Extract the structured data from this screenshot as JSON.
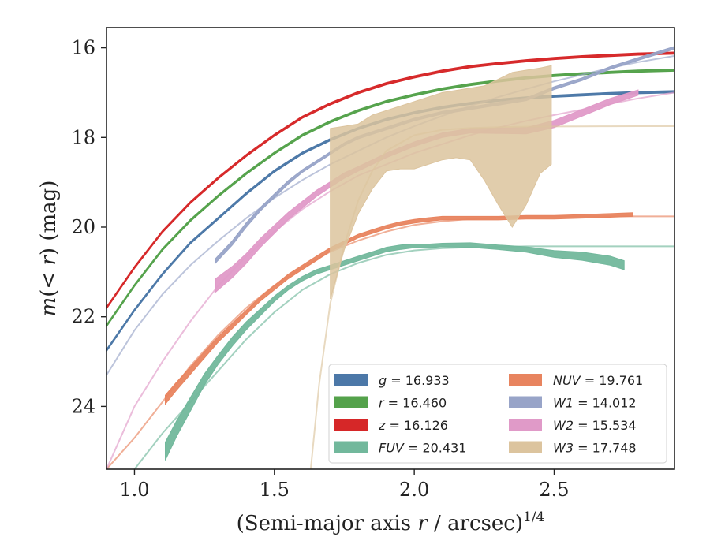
{
  "chart_data": {
    "type": "line",
    "title": "",
    "xlabel": "(Semi-major axis r / arcsec)^1/4",
    "xlabel_parts": {
      "prefix": "(Semi-major axis ",
      "var": "r",
      "suffix": " / arcsec)",
      "exponent": "1/4"
    },
    "ylabel": "m(< r) (mag)",
    "ylabel_parts": {
      "var": "m",
      "mid": "(< ",
      "var2": "r",
      "suffix": ") (mag)"
    },
    "xlim": [
      0.9,
      2.93
    ],
    "ylim": [
      25.4,
      15.55
    ],
    "y_inverted": true,
    "xticks": [
      1.0,
      1.5,
      2.0,
      2.5
    ],
    "xtick_labels": [
      "1.0",
      "1.5",
      "2.0",
      "2.5"
    ],
    "yticks": [
      16,
      18,
      20,
      22,
      24
    ],
    "ytick_labels": [
      "16",
      "18",
      "20",
      "22",
      "24"
    ],
    "grid": false,
    "legend_position": "lower-right",
    "series": [
      {
        "name": "g = 16.933",
        "name_var": "g",
        "name_val": "16.933",
        "color": "#4c78a8",
        "band": {
          "x": [
            0.9,
            1.0,
            1.1,
            1.2,
            1.3,
            1.4,
            1.5,
            1.6,
            1.7,
            1.8,
            1.9,
            2.0,
            2.1,
            2.2,
            2.3,
            2.4,
            2.5,
            2.6,
            2.7,
            2.8,
            2.93
          ],
          "y": [
            22.75,
            21.85,
            21.05,
            20.35,
            19.8,
            19.25,
            18.75,
            18.35,
            18.05,
            17.8,
            17.6,
            17.45,
            17.33,
            17.24,
            17.17,
            17.12,
            17.08,
            17.05,
            17.02,
            17.0,
            16.98
          ],
          "w": [
            0.05,
            0.05,
            0.05,
            0.05,
            0.05,
            0.05,
            0.05,
            0.05,
            0.05,
            0.05,
            0.05,
            0.05,
            0.05,
            0.05,
            0.05,
            0.05,
            0.05,
            0.05,
            0.05,
            0.05,
            0.05
          ]
        },
        "model": {
          "x": [
            0.9,
            1.0,
            1.1,
            1.2,
            1.3,
            1.4,
            1.5,
            1.6,
            1.7,
            1.8,
            1.9,
            2.0,
            2.1,
            2.2,
            2.3,
            2.4,
            2.5,
            2.6,
            2.7,
            2.8,
            2.93
          ],
          "y": [
            22.75,
            21.85,
            21.05,
            20.35,
            19.8,
            19.25,
            18.75,
            18.35,
            18.05,
            17.8,
            17.6,
            17.45,
            17.33,
            17.24,
            17.17,
            17.12,
            17.08,
            17.05,
            17.02,
            17.0,
            16.98
          ]
        }
      },
      {
        "name": "r = 16.460",
        "name_var": "r",
        "name_val": "16.460",
        "color": "#54a24b",
        "band": {
          "x": [
            0.9,
            1.0,
            1.1,
            1.2,
            1.3,
            1.4,
            1.5,
            1.6,
            1.7,
            1.8,
            1.9,
            2.0,
            2.1,
            2.2,
            2.3,
            2.4,
            2.5,
            2.6,
            2.7,
            2.8,
            2.93
          ],
          "y": [
            22.2,
            21.3,
            20.5,
            19.85,
            19.3,
            18.8,
            18.35,
            17.95,
            17.65,
            17.4,
            17.2,
            17.05,
            16.92,
            16.82,
            16.74,
            16.67,
            16.62,
            16.58,
            16.55,
            16.52,
            16.5
          ],
          "w": [
            0.05,
            0.05,
            0.05,
            0.05,
            0.05,
            0.05,
            0.05,
            0.05,
            0.05,
            0.05,
            0.05,
            0.05,
            0.05,
            0.05,
            0.05,
            0.05,
            0.05,
            0.05,
            0.05,
            0.05,
            0.05
          ]
        },
        "model": {
          "x": [
            0.9,
            1.0,
            1.1,
            1.2,
            1.3,
            1.4,
            1.5,
            1.6,
            1.7,
            1.8,
            1.9,
            2.0,
            2.1,
            2.2,
            2.3,
            2.4,
            2.5,
            2.6,
            2.7,
            2.8,
            2.93
          ],
          "y": [
            22.2,
            21.3,
            20.5,
            19.85,
            19.3,
            18.8,
            18.35,
            17.95,
            17.65,
            17.4,
            17.2,
            17.05,
            16.92,
            16.82,
            16.74,
            16.67,
            16.62,
            16.58,
            16.55,
            16.52,
            16.5
          ]
        }
      },
      {
        "name": "z = 16.126",
        "name_var": "z",
        "name_val": "16.126",
        "color": "#d62728",
        "band": {
          "x": [
            0.9,
            1.0,
            1.1,
            1.2,
            1.3,
            1.4,
            1.5,
            1.6,
            1.7,
            1.8,
            1.9,
            2.0,
            2.1,
            2.2,
            2.3,
            2.4,
            2.5,
            2.6,
            2.7,
            2.8,
            2.93
          ],
          "y": [
            21.8,
            20.9,
            20.1,
            19.45,
            18.9,
            18.4,
            17.95,
            17.55,
            17.25,
            17.0,
            16.8,
            16.65,
            16.52,
            16.42,
            16.35,
            16.29,
            16.24,
            16.2,
            16.17,
            16.14,
            16.12
          ],
          "w": [
            0.05,
            0.05,
            0.05,
            0.05,
            0.05,
            0.05,
            0.05,
            0.05,
            0.05,
            0.05,
            0.05,
            0.05,
            0.05,
            0.05,
            0.05,
            0.05,
            0.05,
            0.05,
            0.05,
            0.05,
            0.05
          ]
        },
        "model": {
          "x": [
            0.9,
            1.0,
            1.1,
            1.2,
            1.3,
            1.4,
            1.5,
            1.6,
            1.7,
            1.8,
            1.9,
            2.0,
            2.1,
            2.2,
            2.3,
            2.4,
            2.5,
            2.6,
            2.7,
            2.8,
            2.93
          ],
          "y": [
            21.8,
            20.9,
            20.1,
            19.45,
            18.9,
            18.4,
            17.95,
            17.55,
            17.25,
            17.0,
            16.8,
            16.65,
            16.52,
            16.42,
            16.35,
            16.29,
            16.24,
            16.2,
            16.17,
            16.14,
            16.12
          ]
        }
      },
      {
        "name": "FUV = 20.431",
        "name_var": "FUV",
        "name_val": "20.431",
        "color": "#72b89c",
        "band": {
          "x": [
            1.11,
            1.15,
            1.2,
            1.25,
            1.3,
            1.35,
            1.4,
            1.45,
            1.5,
            1.55,
            1.6,
            1.65,
            1.7,
            1.75,
            1.8,
            1.85,
            1.9,
            1.95,
            2.0,
            2.05,
            2.1,
            2.2,
            2.3,
            2.4,
            2.5,
            2.6,
            2.7,
            2.75
          ],
          "y": [
            25.0,
            24.5,
            23.95,
            23.4,
            22.95,
            22.55,
            22.2,
            21.9,
            21.6,
            21.35,
            21.15,
            21.0,
            20.9,
            20.8,
            20.7,
            20.6,
            20.5,
            20.45,
            20.42,
            20.42,
            20.4,
            20.4,
            20.45,
            20.5,
            20.6,
            20.65,
            20.75,
            20.85
          ],
          "w": [
            0.4,
            0.35,
            0.3,
            0.25,
            0.2,
            0.2,
            0.18,
            0.15,
            0.12,
            0.1,
            0.1,
            0.1,
            0.1,
            0.1,
            0.1,
            0.1,
            0.1,
            0.1,
            0.08,
            0.08,
            0.08,
            0.1,
            0.1,
            0.12,
            0.15,
            0.18,
            0.2,
            0.2
          ]
        },
        "model": {
          "x": [
            1.0,
            1.1,
            1.2,
            1.3,
            1.4,
            1.5,
            1.6,
            1.7,
            1.8,
            1.9,
            2.0,
            2.1,
            2.2,
            2.3,
            2.4,
            2.5,
            2.6,
            2.7,
            2.8,
            2.93
          ],
          "y": [
            25.4,
            24.6,
            23.9,
            23.2,
            22.5,
            21.9,
            21.4,
            21.05,
            20.8,
            20.62,
            20.52,
            20.47,
            20.45,
            20.44,
            20.43,
            20.43,
            20.43,
            20.43,
            20.43,
            20.43
          ]
        }
      },
      {
        "name": "NUV = 19.761",
        "name_var": "NUV",
        "name_val": "19.761",
        "color": "#e8845f",
        "band": {
          "x": [
            1.11,
            1.15,
            1.2,
            1.25,
            1.3,
            1.35,
            1.4,
            1.45,
            1.5,
            1.55,
            1.6,
            1.65,
            1.7,
            1.75,
            1.8,
            1.85,
            1.9,
            1.95,
            2.0,
            2.05,
            2.1,
            2.2,
            2.3,
            2.4,
            2.5,
            2.6,
            2.7,
            2.78
          ],
          "y": [
            23.85,
            23.55,
            23.2,
            22.85,
            22.5,
            22.2,
            21.9,
            21.6,
            21.35,
            21.1,
            20.9,
            20.7,
            20.5,
            20.35,
            20.2,
            20.1,
            20.0,
            19.92,
            19.87,
            19.83,
            19.8,
            19.8,
            19.8,
            19.78,
            19.78,
            19.76,
            19.74,
            19.72
          ],
          "w": [
            0.2,
            0.18,
            0.16,
            0.14,
            0.12,
            0.12,
            0.1,
            0.1,
            0.1,
            0.1,
            0.1,
            0.1,
            0.08,
            0.08,
            0.08,
            0.08,
            0.08,
            0.08,
            0.08,
            0.08,
            0.08,
            0.08,
            0.08,
            0.08,
            0.08,
            0.08,
            0.08,
            0.08
          ]
        },
        "model": {
          "x": [
            0.9,
            1.0,
            1.1,
            1.2,
            1.3,
            1.4,
            1.5,
            1.6,
            1.7,
            1.8,
            1.9,
            2.0,
            2.1,
            2.2,
            2.3,
            2.4,
            2.5,
            2.6,
            2.7,
            2.8,
            2.93
          ],
          "y": [
            25.4,
            24.7,
            23.9,
            23.1,
            22.4,
            21.8,
            21.3,
            20.9,
            20.55,
            20.3,
            20.1,
            19.95,
            19.87,
            19.82,
            19.79,
            19.77,
            19.765,
            19.762,
            19.761,
            19.761,
            19.761
          ]
        }
      },
      {
        "name": "W1 = 14.012",
        "name_var": "W1",
        "name_val": "14.012",
        "color": "#98a4c8",
        "band": {
          "x": [
            1.29,
            1.35,
            1.4,
            1.45,
            1.5,
            1.55,
            1.6,
            1.65,
            1.7,
            1.75,
            1.8,
            1.9,
            2.0,
            2.1,
            2.2,
            2.3,
            2.4,
            2.5,
            2.6,
            2.7,
            2.8,
            2.93
          ],
          "y": [
            20.75,
            20.35,
            19.95,
            19.6,
            19.3,
            19.0,
            18.75,
            18.55,
            18.35,
            18.15,
            18.0,
            17.8,
            17.6,
            17.45,
            17.35,
            17.25,
            17.15,
            16.9,
            16.7,
            16.45,
            16.25,
            16.0
          ],
          "w": [
            0.1,
            0.1,
            0.1,
            0.08,
            0.08,
            0.08,
            0.06,
            0.06,
            0.06,
            0.06,
            0.06,
            0.06,
            0.06,
            0.06,
            0.06,
            0.06,
            0.06,
            0.06,
            0.06,
            0.06,
            0.06,
            0.06
          ]
        },
        "model": {
          "x": [
            0.9,
            1.0,
            1.1,
            1.2,
            1.3,
            1.4,
            1.5,
            1.6,
            1.7,
            1.8,
            1.9,
            2.0,
            2.1,
            2.2,
            2.3,
            2.4,
            2.5,
            2.6,
            2.7,
            2.8,
            2.93
          ],
          "y": [
            23.3,
            22.3,
            21.5,
            20.85,
            20.3,
            19.8,
            19.35,
            18.95,
            18.6,
            18.3,
            18.0,
            17.75,
            17.52,
            17.3,
            17.1,
            16.92,
            16.75,
            16.6,
            16.45,
            16.32,
            16.18
          ]
        }
      },
      {
        "name": "W2 = 15.534",
        "name_var": "W2",
        "name_val": "15.534",
        "color": "#e09ac8",
        "band": {
          "x": [
            1.29,
            1.35,
            1.4,
            1.45,
            1.5,
            1.55,
            1.6,
            1.65,
            1.7,
            1.75,
            1.8,
            1.9,
            2.0,
            2.1,
            2.2,
            2.3,
            2.4,
            2.5,
            2.6,
            2.7,
            2.8
          ],
          "y": [
            21.3,
            21.0,
            20.7,
            20.35,
            20.05,
            19.75,
            19.5,
            19.25,
            19.05,
            18.85,
            18.7,
            18.4,
            18.15,
            17.95,
            17.85,
            17.85,
            17.85,
            17.7,
            17.45,
            17.2,
            17.0
          ],
          "w": [
            0.3,
            0.25,
            0.22,
            0.2,
            0.18,
            0.16,
            0.15,
            0.14,
            0.12,
            0.12,
            0.1,
            0.1,
            0.1,
            0.1,
            0.1,
            0.12,
            0.14,
            0.16,
            0.15,
            0.14,
            0.12
          ]
        },
        "model": {
          "x": [
            0.9,
            1.0,
            1.1,
            1.2,
            1.3,
            1.4,
            1.5,
            1.6,
            1.7,
            1.8,
            1.9,
            2.0,
            2.1,
            2.2,
            2.3,
            2.4,
            2.5,
            2.6,
            2.7,
            2.8,
            2.93
          ],
          "y": [
            25.4,
            24.0,
            23.0,
            22.1,
            21.3,
            20.65,
            20.1,
            19.6,
            19.2,
            18.85,
            18.6,
            18.35,
            18.15,
            17.95,
            17.78,
            17.63,
            17.5,
            17.38,
            17.25,
            17.13,
            17.0
          ]
        }
      },
      {
        "name": "W3 = 17.748",
        "name_var": "W3",
        "name_val": "17.748",
        "color": "#dcc49e",
        "band_top": {
          "x": [
            1.7,
            1.75,
            1.8,
            1.85,
            1.9,
            1.95,
            2.0,
            2.05,
            2.1,
            2.15,
            2.2,
            2.25,
            2.3,
            2.35,
            2.4,
            2.45,
            2.49
          ],
          "y": [
            17.8,
            17.75,
            17.7,
            17.5,
            17.4,
            17.3,
            17.2,
            17.1,
            17.0,
            16.95,
            16.9,
            16.85,
            16.7,
            16.55,
            16.5,
            16.45,
            16.4
          ]
        },
        "band_bottom": {
          "x": [
            1.7,
            1.75,
            1.8,
            1.85,
            1.9,
            1.95,
            2.0,
            2.05,
            2.1,
            2.15,
            2.2,
            2.25,
            2.3,
            2.35,
            2.4,
            2.45,
            2.49
          ],
          "y": [
            21.6,
            20.5,
            19.7,
            19.15,
            18.75,
            18.7,
            18.7,
            18.6,
            18.5,
            18.45,
            18.5,
            18.95,
            19.5,
            20.0,
            19.5,
            18.8,
            18.6
          ]
        },
        "model": {
          "x": [
            1.63,
            1.66,
            1.7,
            1.75,
            1.8,
            1.85,
            1.9,
            2.0,
            2.1,
            2.2,
            2.3,
            2.4,
            2.5,
            2.6,
            2.7,
            2.8,
            2.93
          ],
          "y": [
            25.4,
            23.5,
            21.7,
            20.4,
            19.4,
            18.75,
            18.3,
            17.95,
            17.83,
            17.79,
            17.77,
            17.76,
            17.755,
            17.752,
            17.75,
            17.749,
            17.748
          ]
        }
      }
    ]
  }
}
